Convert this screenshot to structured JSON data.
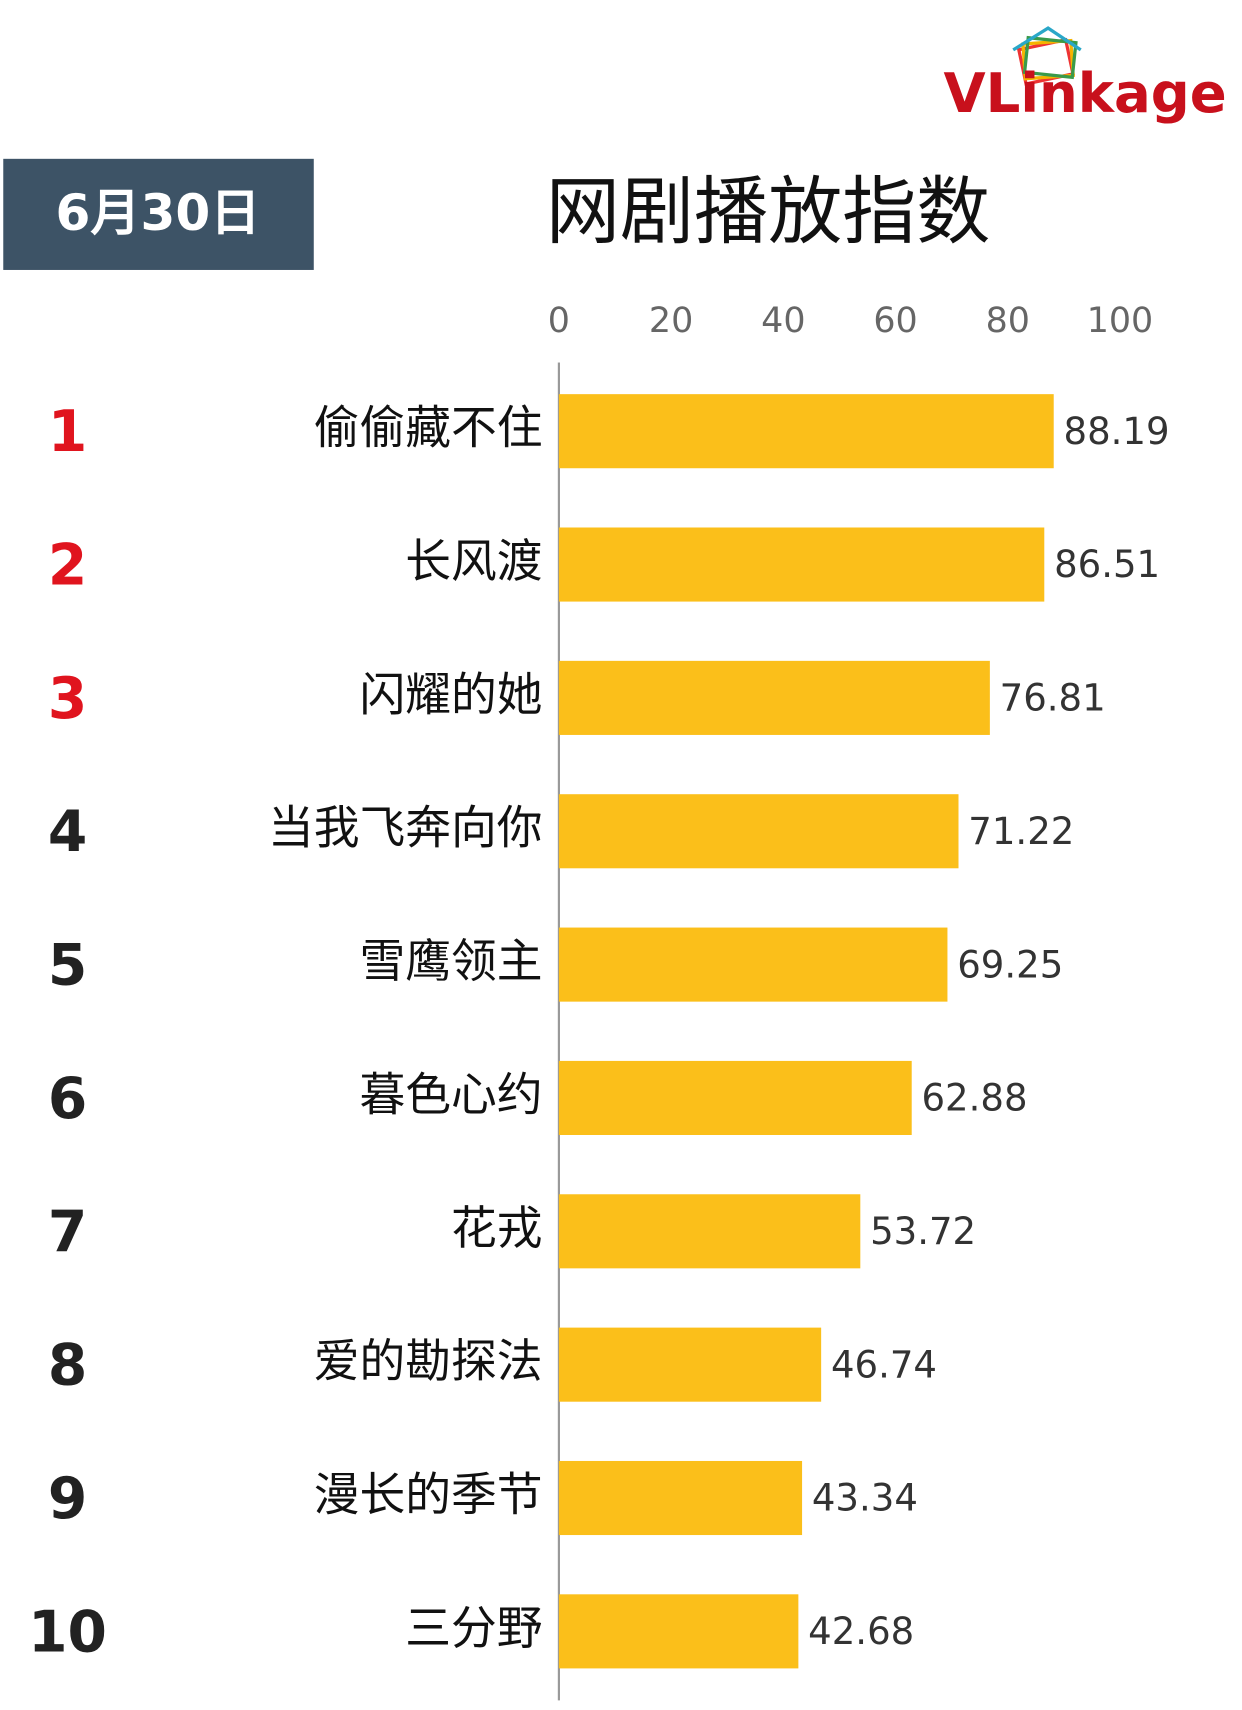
{
  "logo": "VLinkage",
  "chart_data": {
    "type": "bar",
    "orientation": "horizontal",
    "date": "6月30日",
    "title": "网剧播放指数",
    "ranks": [
      1,
      2,
      3,
      4,
      5,
      6,
      7,
      8,
      9,
      10
    ],
    "rank_colors": [
      "#e0141e",
      "#e0141e",
      "#e0141e",
      "#222222",
      "#222222",
      "#222222",
      "#222222",
      "#222222",
      "#222222",
      "#222222"
    ],
    "categories": [
      "偷偷藏不住",
      "长风渡",
      "闪耀的她",
      "当我飞奔向你",
      "雪鹰领主",
      "暮色心约",
      "花戎",
      "爱的勘探法",
      "漫长的季节",
      "三分野"
    ],
    "values": [
      88.19,
      86.51,
      76.81,
      71.22,
      69.25,
      62.88,
      53.72,
      46.74,
      43.34,
      42.68
    ],
    "color": "#fbbf1a",
    "xlim": [
      0,
      100
    ],
    "xticks": [
      0,
      20,
      40,
      60,
      80,
      100
    ],
    "grid": false
  }
}
